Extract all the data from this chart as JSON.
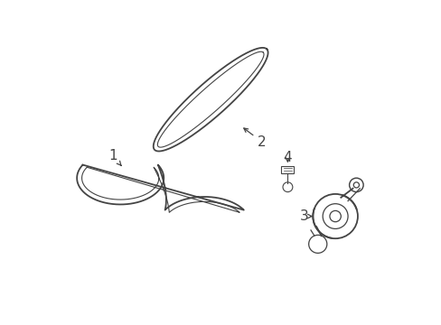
{
  "background_color": "#ffffff",
  "line_color": "#444444",
  "label_color": "#000000",
  "lw_outer": 1.3,
  "lw_inner": 0.8,
  "fig_w": 4.89,
  "fig_h": 3.6,
  "dpi": 100
}
